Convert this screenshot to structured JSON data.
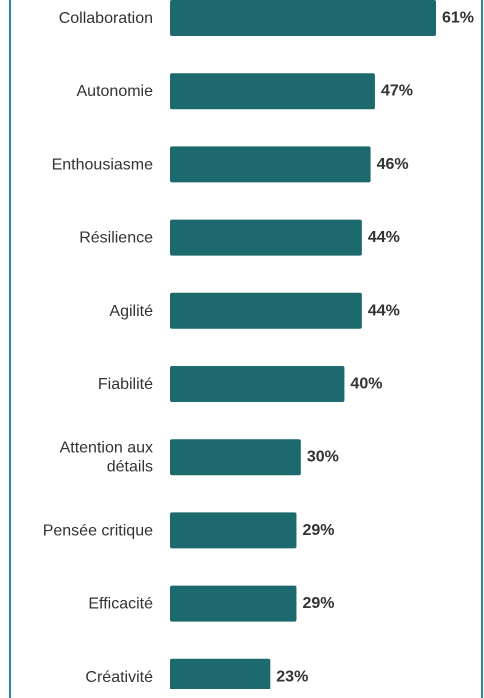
{
  "chart_data": {
    "type": "bar",
    "orientation": "horizontal",
    "categories": [
      [
        "Collaboration"
      ],
      [
        "Autonomie"
      ],
      [
        "Enthousiasme"
      ],
      [
        "Résilience"
      ],
      [
        "Agilité"
      ],
      [
        "Fiabilité"
      ],
      [
        "Attention aux",
        "détails"
      ],
      [
        "Pensée critique"
      ],
      [
        "Efficacité"
      ],
      [
        "Créativité"
      ]
    ],
    "values": [
      61,
      47,
      46,
      44,
      44,
      40,
      30,
      29,
      29,
      23
    ],
    "value_labels": [
      "61%",
      "47%",
      "46%",
      "44%",
      "44%",
      "40%",
      "30%",
      "29%",
      "29%",
      "23%"
    ],
    "title": "",
    "xlabel": "",
    "ylabel": "",
    "xlim": [
      0,
      61
    ],
    "grid": false,
    "legend": "none",
    "colors": {
      "bar": "#1c6a6d",
      "text": "#333333",
      "frame": "#2a8f96"
    }
  }
}
